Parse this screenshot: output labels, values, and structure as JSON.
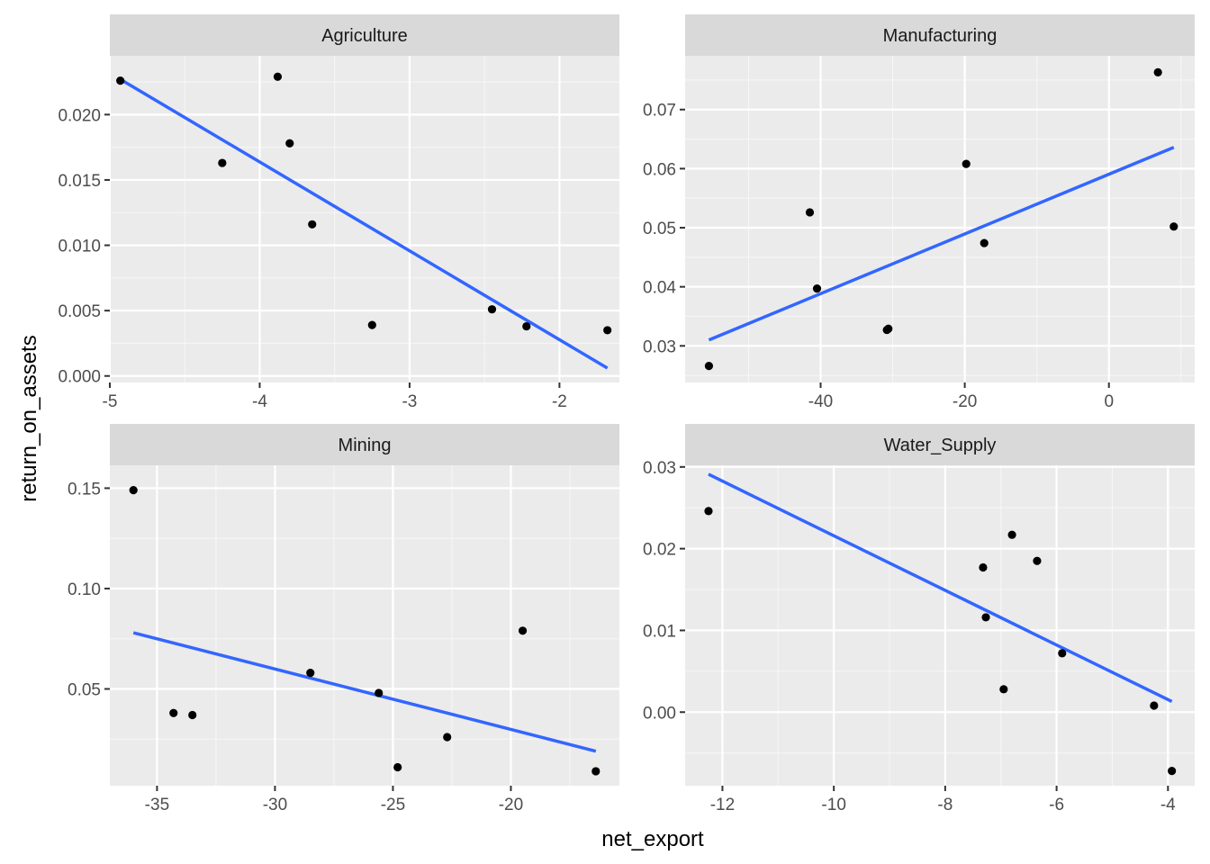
{
  "axis_titles": {
    "x": "net_export",
    "y": "return_on_assets"
  },
  "style": {
    "panel_bg": "#ebebeb",
    "strip_bg": "#d9d9d9",
    "grid": "#ffffff",
    "point": "#000000",
    "fit_line": "#3366ff"
  },
  "chart_data": [
    {
      "type": "scatter",
      "title": "Agriculture",
      "xlim": [
        -5.0,
        -1.6
      ],
      "ylim": [
        -0.0005,
        0.0245
      ],
      "xticks": [
        -5,
        -4,
        -3,
        -2
      ],
      "xtick_labels": [
        "-5",
        "-4",
        "-3",
        "-2"
      ],
      "yticks": [
        0.0,
        0.005,
        0.01,
        0.015,
        0.02
      ],
      "ytick_labels": [
        "0.000",
        "0.005",
        "0.010",
        "0.015",
        "0.020"
      ],
      "points": [
        [
          -4.93,
          0.0226
        ],
        [
          -4.25,
          0.0163
        ],
        [
          -3.88,
          0.0229
        ],
        [
          -3.8,
          0.0178
        ],
        [
          -3.65,
          0.0116
        ],
        [
          -3.25,
          0.0039
        ],
        [
          -2.45,
          0.0051
        ],
        [
          -2.22,
          0.0038
        ],
        [
          -1.68,
          0.0035
        ]
      ],
      "fit": [
        [
          -4.93,
          0.0227
        ],
        [
          -1.68,
          0.0006
        ]
      ]
    },
    {
      "type": "scatter",
      "title": "Manufacturing",
      "xlim": [
        -58.8,
        11.9
      ],
      "ylim": [
        0.0238,
        0.0791
      ],
      "xticks": [
        -40,
        -20,
        0
      ],
      "xtick_labels": [
        "-40",
        "-20",
        "0"
      ],
      "yticks": [
        0.03,
        0.04,
        0.05,
        0.06,
        0.07
      ],
      "ytick_labels": [
        "0.03",
        "0.04",
        "0.05",
        "0.06",
        "0.07"
      ],
      "points": [
        [
          -55.5,
          0.0266
        ],
        [
          -41.5,
          0.0526
        ],
        [
          -40.5,
          0.0397
        ],
        [
          -30.8,
          0.0327
        ],
        [
          -30.6,
          0.0329
        ],
        [
          -19.8,
          0.0608
        ],
        [
          -17.3,
          0.0474
        ],
        [
          6.8,
          0.0763
        ],
        [
          9.0,
          0.0502
        ]
      ],
      "fit": [
        [
          -55.5,
          0.031
        ],
        [
          9.0,
          0.0636
        ]
      ]
    },
    {
      "type": "scatter",
      "title": "Mining",
      "xlim": [
        -37.0,
        -15.4
      ],
      "ylim": [
        0.0018,
        0.1614
      ],
      "xticks": [
        -35,
        -30,
        -25,
        -20
      ],
      "xtick_labels": [
        "-35",
        "-30",
        "-25",
        "-20"
      ],
      "yticks": [
        0.05,
        0.1,
        0.15
      ],
      "ytick_labels": [
        "0.05",
        "0.10",
        "0.15"
      ],
      "points": [
        [
          -36.0,
          0.149
        ],
        [
          -34.3,
          0.038
        ],
        [
          -33.5,
          0.037
        ],
        [
          -28.5,
          0.058
        ],
        [
          -25.6,
          0.048
        ],
        [
          -24.8,
          0.011
        ],
        [
          -22.7,
          0.026
        ],
        [
          -19.5,
          0.079
        ],
        [
          -16.4,
          0.009
        ]
      ],
      "fit": [
        [
          -36.0,
          0.078
        ],
        [
          -16.4,
          0.019
        ]
      ]
    },
    {
      "type": "scatter",
      "title": "Water_Supply",
      "xlim": [
        -12.67,
        -3.52
      ],
      "ylim": [
        -0.009,
        0.0302
      ],
      "xticks": [
        -12,
        -10,
        -8,
        -6,
        -4
      ],
      "xtick_labels": [
        "-12",
        "-10",
        "-8",
        "-6",
        "-4"
      ],
      "yticks": [
        0.0,
        0.01,
        0.02,
        0.03
      ],
      "ytick_labels": [
        "0.00",
        "0.01",
        "0.02",
        "0.03"
      ],
      "points": [
        [
          -12.25,
          0.0246
        ],
        [
          -7.32,
          0.0177
        ],
        [
          -7.27,
          0.0116
        ],
        [
          -6.8,
          0.0217
        ],
        [
          -6.95,
          0.0028
        ],
        [
          -6.35,
          0.0185
        ],
        [
          -5.9,
          0.0072
        ],
        [
          -4.25,
          0.0008
        ],
        [
          -3.93,
          -0.0072
        ]
      ],
      "fit": [
        [
          -12.25,
          0.0291
        ],
        [
          -3.93,
          0.0013
        ]
      ]
    }
  ]
}
